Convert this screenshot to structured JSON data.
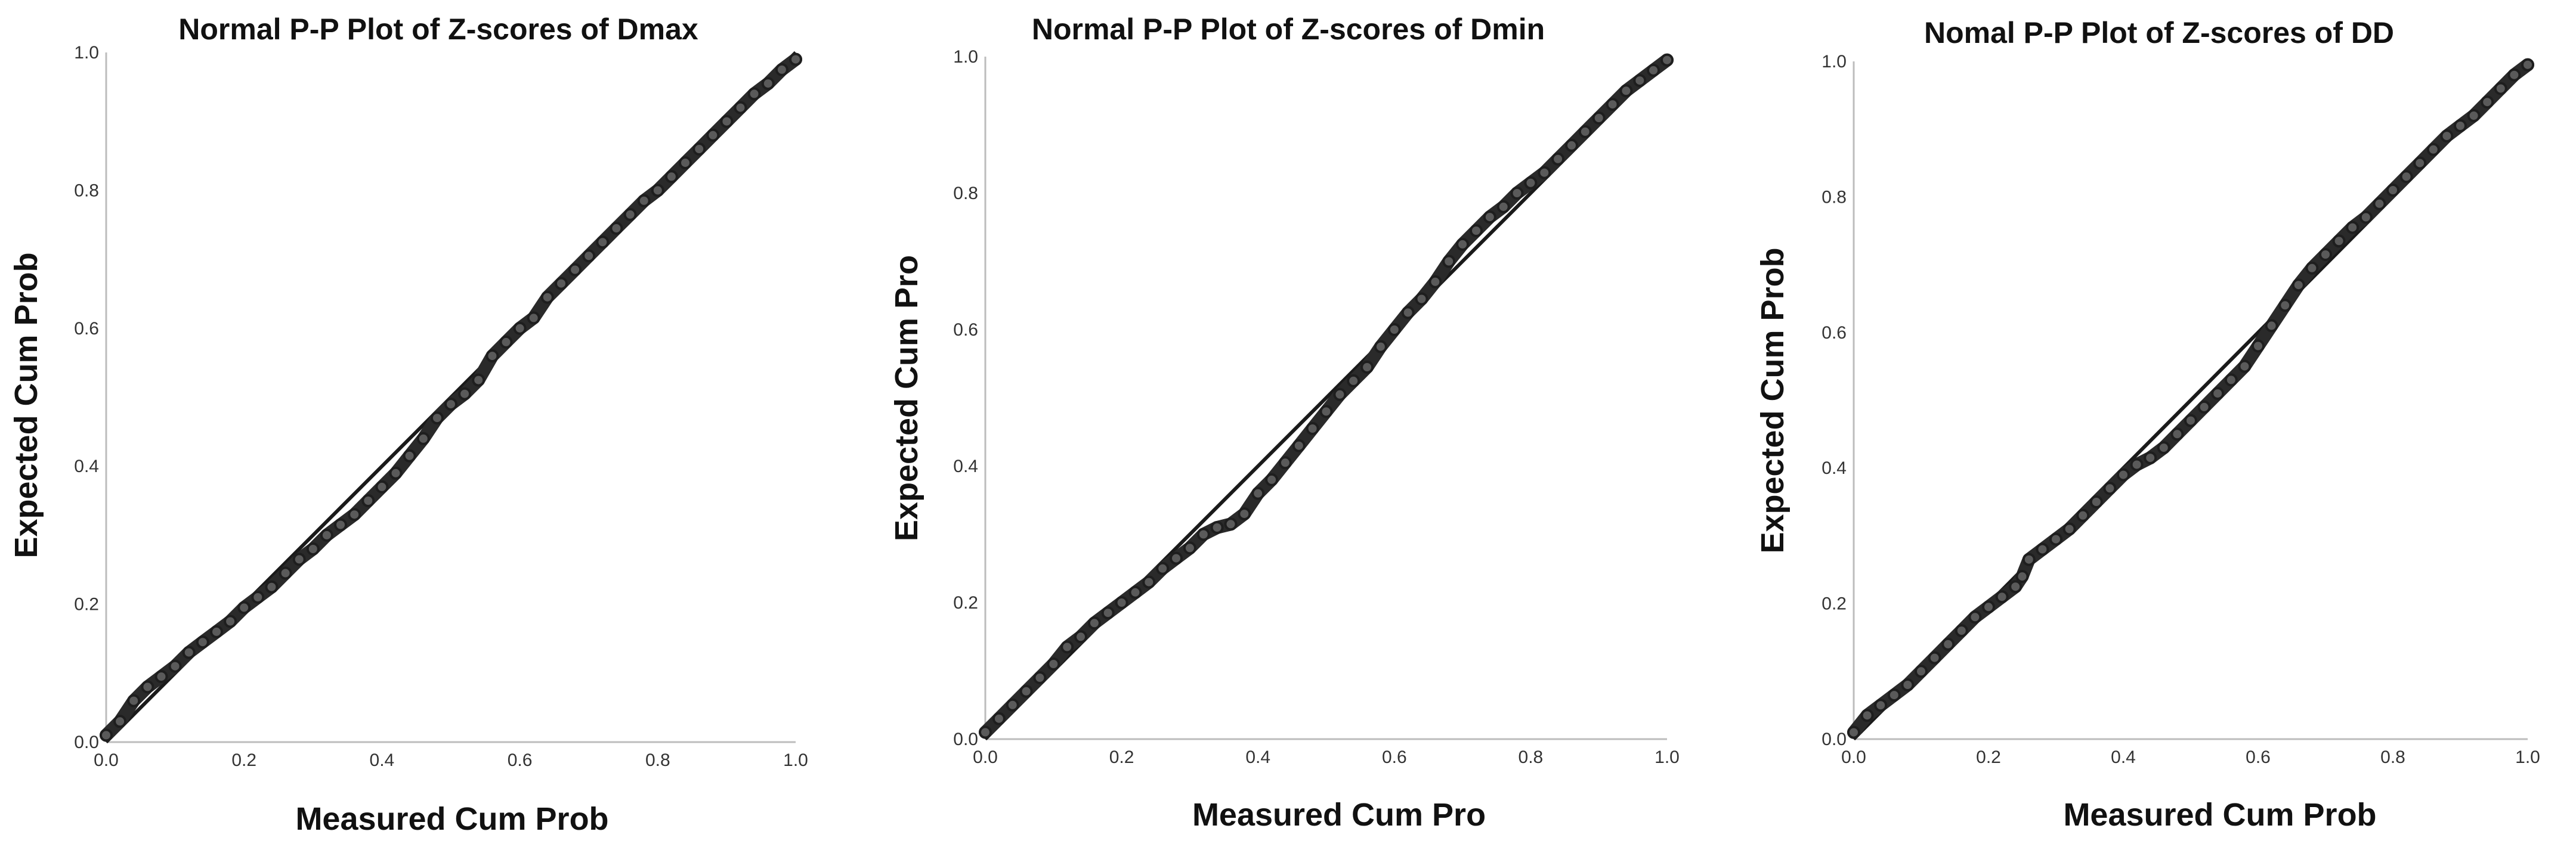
{
  "chart_data": [
    {
      "type": "scatter",
      "title": "Normal P-P Plot of Z-scores of Dmax",
      "xlabel": "Measured Cum Prob",
      "ylabel": "Expected Cum Prob",
      "xlim": [
        0.0,
        1.0
      ],
      "ylim": [
        0.0,
        1.0
      ],
      "ticks": [
        "0.0",
        "0.2",
        "0.4",
        "0.6",
        "0.8",
        "1.0"
      ],
      "grid": false,
      "reference_line": [
        [
          0.0,
          0.0
        ],
        [
          1.0,
          1.0
        ]
      ],
      "points": [
        [
          0.0,
          0.01
        ],
        [
          0.02,
          0.03
        ],
        [
          0.04,
          0.06
        ],
        [
          0.06,
          0.08
        ],
        [
          0.08,
          0.095
        ],
        [
          0.1,
          0.11
        ],
        [
          0.12,
          0.13
        ],
        [
          0.14,
          0.145
        ],
        [
          0.16,
          0.16
        ],
        [
          0.18,
          0.175
        ],
        [
          0.2,
          0.195
        ],
        [
          0.22,
          0.21
        ],
        [
          0.24,
          0.225
        ],
        [
          0.26,
          0.245
        ],
        [
          0.28,
          0.265
        ],
        [
          0.3,
          0.28
        ],
        [
          0.32,
          0.3
        ],
        [
          0.34,
          0.315
        ],
        [
          0.36,
          0.33
        ],
        [
          0.38,
          0.35
        ],
        [
          0.4,
          0.37
        ],
        [
          0.42,
          0.39
        ],
        [
          0.44,
          0.415
        ],
        [
          0.46,
          0.44
        ],
        [
          0.48,
          0.47
        ],
        [
          0.5,
          0.49
        ],
        [
          0.52,
          0.505
        ],
        [
          0.54,
          0.525
        ],
        [
          0.56,
          0.56
        ],
        [
          0.58,
          0.58
        ],
        [
          0.6,
          0.6
        ],
        [
          0.62,
          0.615
        ],
        [
          0.64,
          0.645
        ],
        [
          0.66,
          0.665
        ],
        [
          0.68,
          0.685
        ],
        [
          0.7,
          0.705
        ],
        [
          0.72,
          0.725
        ],
        [
          0.74,
          0.745
        ],
        [
          0.76,
          0.765
        ],
        [
          0.78,
          0.785
        ],
        [
          0.8,
          0.8
        ],
        [
          0.82,
          0.82
        ],
        [
          0.84,
          0.84
        ],
        [
          0.86,
          0.86
        ],
        [
          0.88,
          0.88
        ],
        [
          0.9,
          0.9
        ],
        [
          0.92,
          0.92
        ],
        [
          0.94,
          0.94
        ],
        [
          0.96,
          0.955
        ],
        [
          0.98,
          0.975
        ],
        [
          1.0,
          0.99
        ]
      ]
    },
    {
      "type": "scatter",
      "title": "Normal P-P Plot of Z-scores of Dmin",
      "xlabel": "Measured Cum Pro",
      "ylabel": "Expected Cum Pro",
      "xlim": [
        0.0,
        1.0
      ],
      "ylim": [
        0.0,
        1.0
      ],
      "ticks": [
        "0.0",
        "0.2",
        "0.4",
        "0.6",
        "0.8",
        "1.0"
      ],
      "grid": false,
      "reference_line": [
        [
          0.0,
          0.0
        ],
        [
          1.0,
          1.0
        ]
      ],
      "points": [
        [
          0.0,
          0.01
        ],
        [
          0.02,
          0.03
        ],
        [
          0.04,
          0.05
        ],
        [
          0.06,
          0.07
        ],
        [
          0.08,
          0.09
        ],
        [
          0.1,
          0.11
        ],
        [
          0.12,
          0.135
        ],
        [
          0.14,
          0.15
        ],
        [
          0.16,
          0.17
        ],
        [
          0.18,
          0.185
        ],
        [
          0.2,
          0.2
        ],
        [
          0.22,
          0.215
        ],
        [
          0.24,
          0.23
        ],
        [
          0.26,
          0.25
        ],
        [
          0.28,
          0.265
        ],
        [
          0.3,
          0.28
        ],
        [
          0.32,
          0.3
        ],
        [
          0.34,
          0.31
        ],
        [
          0.36,
          0.315
        ],
        [
          0.38,
          0.33
        ],
        [
          0.4,
          0.36
        ],
        [
          0.42,
          0.38
        ],
        [
          0.44,
          0.405
        ],
        [
          0.46,
          0.43
        ],
        [
          0.48,
          0.455
        ],
        [
          0.5,
          0.48
        ],
        [
          0.52,
          0.505
        ],
        [
          0.54,
          0.525
        ],
        [
          0.56,
          0.545
        ],
        [
          0.58,
          0.575
        ],
        [
          0.6,
          0.6
        ],
        [
          0.62,
          0.625
        ],
        [
          0.64,
          0.645
        ],
        [
          0.66,
          0.67
        ],
        [
          0.68,
          0.7
        ],
        [
          0.7,
          0.725
        ],
        [
          0.72,
          0.745
        ],
        [
          0.74,
          0.765
        ],
        [
          0.76,
          0.78
        ],
        [
          0.78,
          0.8
        ],
        [
          0.8,
          0.815
        ],
        [
          0.82,
          0.83
        ],
        [
          0.84,
          0.85
        ],
        [
          0.86,
          0.87
        ],
        [
          0.88,
          0.89
        ],
        [
          0.9,
          0.91
        ],
        [
          0.92,
          0.93
        ],
        [
          0.94,
          0.95
        ],
        [
          0.96,
          0.965
        ],
        [
          0.98,
          0.98
        ],
        [
          1.0,
          0.995
        ]
      ]
    },
    {
      "type": "scatter",
      "title": "Nomal P-P Plot of Z-scores of DD",
      "xlabel": "Measured Cum Prob",
      "ylabel": "Expected Cum Prob",
      "xlim": [
        0.0,
        1.0
      ],
      "ylim": [
        0.0,
        1.0
      ],
      "ticks": [
        "0.0",
        "0.2",
        "0.4",
        "0.6",
        "0.8",
        "1.0"
      ],
      "grid": false,
      "reference_line": [
        [
          0.0,
          0.0
        ],
        [
          1.0,
          1.0
        ]
      ],
      "points": [
        [
          0.0,
          0.01
        ],
        [
          0.02,
          0.035
        ],
        [
          0.04,
          0.05
        ],
        [
          0.06,
          0.065
        ],
        [
          0.08,
          0.08
        ],
        [
          0.1,
          0.1
        ],
        [
          0.12,
          0.12
        ],
        [
          0.14,
          0.14
        ],
        [
          0.16,
          0.16
        ],
        [
          0.18,
          0.18
        ],
        [
          0.2,
          0.195
        ],
        [
          0.22,
          0.21
        ],
        [
          0.24,
          0.225
        ],
        [
          0.25,
          0.24
        ],
        [
          0.26,
          0.265
        ],
        [
          0.28,
          0.28
        ],
        [
          0.3,
          0.295
        ],
        [
          0.32,
          0.31
        ],
        [
          0.34,
          0.33
        ],
        [
          0.36,
          0.35
        ],
        [
          0.38,
          0.37
        ],
        [
          0.4,
          0.39
        ],
        [
          0.42,
          0.405
        ],
        [
          0.44,
          0.415
        ],
        [
          0.46,
          0.43
        ],
        [
          0.48,
          0.45
        ],
        [
          0.5,
          0.47
        ],
        [
          0.52,
          0.49
        ],
        [
          0.54,
          0.51
        ],
        [
          0.56,
          0.53
        ],
        [
          0.58,
          0.55
        ],
        [
          0.6,
          0.58
        ],
        [
          0.62,
          0.61
        ],
        [
          0.64,
          0.64
        ],
        [
          0.66,
          0.67
        ],
        [
          0.68,
          0.695
        ],
        [
          0.7,
          0.715
        ],
        [
          0.72,
          0.735
        ],
        [
          0.74,
          0.755
        ],
        [
          0.76,
          0.77
        ],
        [
          0.78,
          0.79
        ],
        [
          0.8,
          0.81
        ],
        [
          0.82,
          0.83
        ],
        [
          0.84,
          0.85
        ],
        [
          0.86,
          0.87
        ],
        [
          0.88,
          0.89
        ],
        [
          0.9,
          0.905
        ],
        [
          0.92,
          0.92
        ],
        [
          0.94,
          0.94
        ],
        [
          0.96,
          0.96
        ],
        [
          0.98,
          0.98
        ],
        [
          1.0,
          0.995
        ]
      ]
    }
  ]
}
